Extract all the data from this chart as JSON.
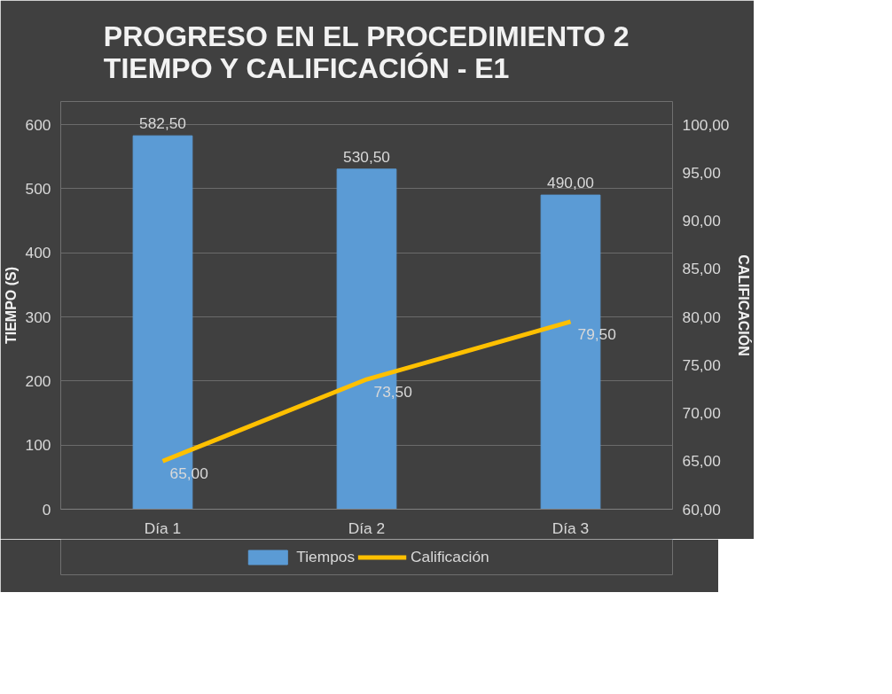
{
  "chart_data": {
    "type": "bar",
    "title": "PROGRESO EN EL PROCEDIMIENTO 2\nTIEMPO Y CALIFICACIÓN - E1",
    "categories": [
      "Día 1",
      "Día 2",
      "Día 3"
    ],
    "series": [
      {
        "name": "Tiempos",
        "color": "#5b9bd5",
        "values": [
          582.5,
          530.5,
          490.0
        ],
        "value_labels": [
          "582,50",
          "530,50",
          "490,00"
        ]
      },
      {
        "name": "Calificación",
        "type": "line",
        "axis": "y2",
        "color": "#ffc000",
        "values": [
          65.0,
          73.5,
          79.5
        ],
        "value_labels": [
          "65,00",
          "73,50",
          "79,50"
        ]
      }
    ],
    "ylabel": "TIEMPO (S)",
    "y2label": "CALIFICACIÓN",
    "ylim": [
      0,
      600
    ],
    "yticks": [
      0,
      100,
      200,
      300,
      400,
      500,
      600
    ],
    "y2lim": [
      60,
      100
    ],
    "y2ticks": [
      {
        "value": 60,
        "label": "60,00"
      },
      {
        "value": 65,
        "label": "65,00"
      },
      {
        "value": 70,
        "label": "70,00"
      },
      {
        "value": 75,
        "label": "75,00"
      },
      {
        "value": 80,
        "label": "80,00"
      },
      {
        "value": 85,
        "label": "85,00"
      },
      {
        "value": 90,
        "label": "90,00"
      },
      {
        "value": 95,
        "label": "95,00"
      },
      {
        "value": 100,
        "label": "100,00"
      }
    ],
    "grid": "y",
    "legend": "bottom",
    "marker": "none",
    "line_style": "solid"
  }
}
